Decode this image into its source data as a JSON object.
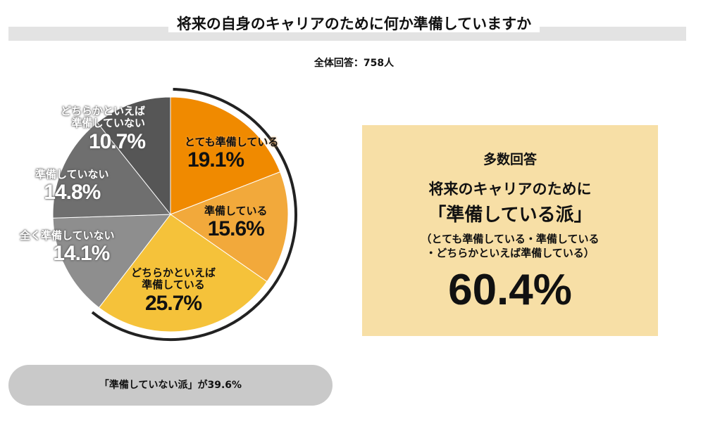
{
  "title": "将来の自身のキャリアのために何か準備していますか",
  "total": "全体回答：758人",
  "chart_data": {
    "type": "pie",
    "title": "将来の自身のキャリアのために何か準備していますか",
    "start": "12 o'clock, clockwise",
    "slices": [
      {
        "label": "とても準備している",
        "value": 19.1,
        "display": "19.1%",
        "color": "#F08A00"
      },
      {
        "label": "準備している",
        "value": 15.6,
        "display": "15.6%",
        "color": "#F2A93B"
      },
      {
        "label": "どちらかといえば準備している",
        "value": 25.7,
        "display": "25.7%",
        "color": "#F5C23A"
      },
      {
        "label": "全く準備していない",
        "value": 14.1,
        "display": "14.1%",
        "color": "#8E8E8E"
      },
      {
        "label": "準備していない",
        "value": 14.8,
        "display": "14.8%",
        "color": "#6F6F6F"
      },
      {
        "label": "どちらかといえば準備していない",
        "value": 10.7,
        "display": "10.7%",
        "color": "#565656"
      }
    ]
  },
  "labels": {
    "s0": "とても準備している",
    "s1": "準備している",
    "s2a": "どちらかといえば",
    "s2b": "準備している",
    "s3": "全く準備していない",
    "s4": "準備していない",
    "s5a": "どちらかといえば",
    "s5b": "準備していない"
  },
  "summary": {
    "heading": "多数回答",
    "line1": "将来のキャリアのために",
    "line2": "「準備している派」",
    "note1": "（とても準備している・準備している",
    "note2": "・どちらかといえば準備している）",
    "value": "60.4%"
  },
  "footer": "「準備していない派」が39.6%"
}
